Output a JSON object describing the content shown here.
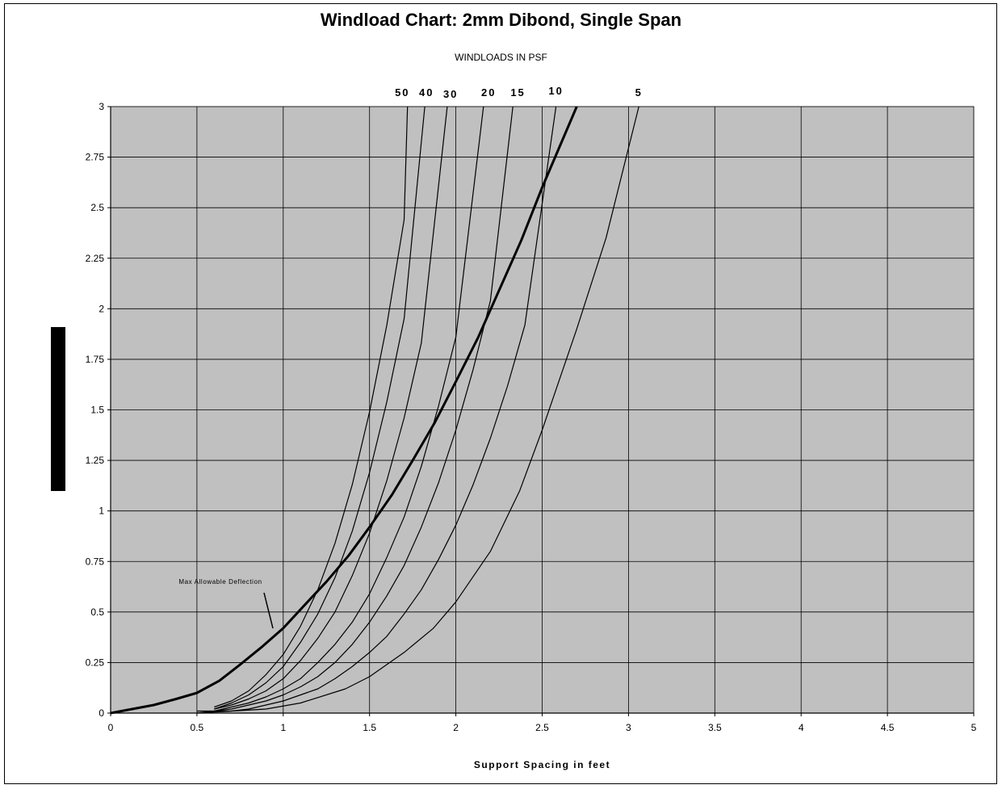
{
  "chart_data": {
    "type": "line",
    "title": "Windload Chart: 2mm Dibond, Single Span",
    "subtitle": "WINDLOADS IN PSF",
    "xlabel": "Support Spacing in feet",
    "ylabel": "",
    "xlim": [
      0,
      5
    ],
    "ylim": [
      0,
      3
    ],
    "x_ticks": [
      "0",
      "0.5",
      "1",
      "1.5",
      "2",
      "2.5",
      "3",
      "3.5",
      "4",
      "4.5",
      "5"
    ],
    "y_ticks": [
      "0",
      "0.25",
      "0.5",
      "0.75",
      "1",
      "1.25",
      "1.5",
      "1.75",
      "2",
      "2.25",
      "2.5",
      "2.75",
      "3"
    ],
    "grid": true,
    "plot_background": "#c0c0c0",
    "series": [
      {
        "name": "50",
        "x": [
          0.6,
          0.7,
          0.8,
          0.9,
          1.0,
          1.1,
          1.2,
          1.3,
          1.4,
          1.5,
          1.6,
          1.7,
          1.72
        ],
        "y": [
          0.03,
          0.06,
          0.11,
          0.19,
          0.29,
          0.43,
          0.61,
          0.84,
          1.13,
          1.49,
          1.92,
          2.44,
          3.0
        ]
      },
      {
        "name": "40",
        "x": [
          0.6,
          0.7,
          0.8,
          0.9,
          1.0,
          1.1,
          1.2,
          1.3,
          1.4,
          1.5,
          1.6,
          1.7,
          1.82
        ],
        "y": [
          0.02,
          0.05,
          0.09,
          0.15,
          0.23,
          0.35,
          0.49,
          0.67,
          0.9,
          1.19,
          1.54,
          1.95,
          3.0
        ]
      },
      {
        "name": "30",
        "x": [
          0.6,
          0.7,
          0.8,
          0.9,
          1.0,
          1.1,
          1.2,
          1.3,
          1.4,
          1.5,
          1.6,
          1.7,
          1.8,
          1.95
        ],
        "y": [
          0.02,
          0.04,
          0.07,
          0.11,
          0.17,
          0.26,
          0.37,
          0.5,
          0.68,
          0.89,
          1.15,
          1.46,
          1.83,
          3.0
        ]
      },
      {
        "name": "20",
        "x": [
          0.5,
          0.6,
          0.7,
          0.8,
          0.9,
          1.0,
          1.1,
          1.2,
          1.3,
          1.4,
          1.5,
          1.6,
          1.7,
          1.8,
          1.9,
          2.0,
          2.16
        ],
        "y": [
          0.01,
          0.01,
          0.03,
          0.05,
          0.08,
          0.12,
          0.17,
          0.25,
          0.34,
          0.45,
          0.59,
          0.77,
          0.97,
          1.22,
          1.52,
          1.86,
          3.0
        ]
      },
      {
        "name": "15",
        "x": [
          0.5,
          0.6,
          0.7,
          0.8,
          0.9,
          1.0,
          1.1,
          1.2,
          1.3,
          1.4,
          1.5,
          1.6,
          1.7,
          1.8,
          1.9,
          2.0,
          2.1,
          2.2,
          2.33
        ],
        "y": [
          0.0,
          0.01,
          0.02,
          0.04,
          0.06,
          0.09,
          0.13,
          0.18,
          0.25,
          0.34,
          0.45,
          0.58,
          0.73,
          0.92,
          1.14,
          1.4,
          1.7,
          2.04,
          3.0
        ]
      },
      {
        "name": "10",
        "x": [
          0.5,
          0.6,
          0.7,
          0.8,
          0.9,
          1.0,
          1.1,
          1.2,
          1.3,
          1.4,
          1.5,
          1.6,
          1.7,
          1.8,
          1.9,
          2.0,
          2.1,
          2.2,
          2.3,
          2.4,
          2.58
        ],
        "y": [
          0.0,
          0.01,
          0.01,
          0.02,
          0.04,
          0.06,
          0.09,
          0.12,
          0.17,
          0.23,
          0.3,
          0.38,
          0.49,
          0.61,
          0.76,
          0.93,
          1.13,
          1.36,
          1.62,
          1.92,
          3.0
        ]
      },
      {
        "name": "5",
        "x": [
          0.5,
          0.7,
          0.9,
          1.1,
          1.36,
          1.5,
          1.7,
          1.87,
          2.0,
          2.2,
          2.37,
          2.5,
          2.7,
          2.87,
          3.06
        ],
        "y": [
          0.0,
          0.01,
          0.02,
          0.05,
          0.12,
          0.18,
          0.3,
          0.42,
          0.55,
          0.8,
          1.1,
          1.4,
          1.9,
          2.35,
          3.0
        ]
      },
      {
        "name": "Max Allowable Deflection",
        "x": [
          0.0,
          0.25,
          0.38,
          0.5,
          0.63,
          0.75,
          0.88,
          1.0,
          1.13,
          1.25,
          1.38,
          1.5,
          1.63,
          1.75,
          1.88,
          2.0,
          2.13,
          2.25,
          2.38,
          2.5,
          2.7
        ],
        "y": [
          0.0,
          0.04,
          0.07,
          0.1,
          0.16,
          0.24,
          0.33,
          0.42,
          0.54,
          0.65,
          0.78,
          0.92,
          1.08,
          1.25,
          1.44,
          1.64,
          1.86,
          2.09,
          2.34,
          2.6,
          3.0
        ]
      }
    ],
    "series_labels": [
      "50",
      "40",
      "30",
      "20",
      "15",
      "10",
      "5"
    ],
    "annotations": [
      {
        "text": "Max Allowable Deflection"
      }
    ]
  }
}
